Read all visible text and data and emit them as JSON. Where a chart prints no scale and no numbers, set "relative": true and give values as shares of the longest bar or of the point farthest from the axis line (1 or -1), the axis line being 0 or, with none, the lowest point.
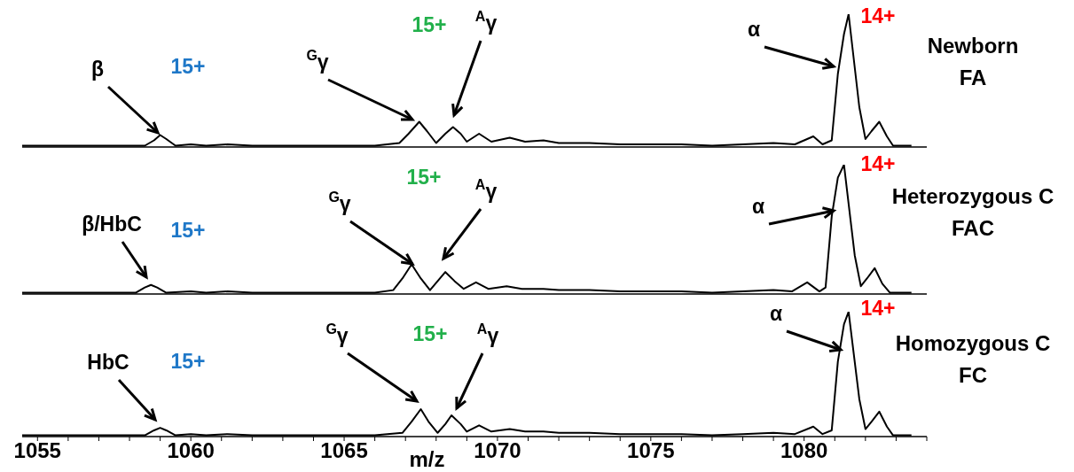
{
  "chart_data": [
    {
      "type": "line",
      "relative": true,
      "title": "Newborn\nFA",
      "xlim": [
        1054.5,
        1084
      ],
      "tick_labels": false,
      "series": [
        {
          "color": "#000000",
          "x": [
            1054.5,
            1056,
            1058.5,
            1058.8,
            1059.0,
            1059.2,
            1059.5,
            1060,
            1060.5,
            1061.2,
            1062,
            1063,
            1064,
            1065,
            1066,
            1066.8,
            1067.1,
            1067.45,
            1067.7,
            1068.0,
            1068.3,
            1068.55,
            1068.8,
            1069.0,
            1069.4,
            1069.8,
            1070.4,
            1070.9,
            1071.5,
            1072,
            1073,
            1074,
            1075,
            1076,
            1077,
            1078,
            1079,
            1079.7,
            1080.3,
            1080.6,
            1080.9,
            1081.1,
            1081.3,
            1081.45,
            1081.6,
            1081.8,
            1082.0,
            1082.2,
            1082.45,
            1082.7,
            1082.9,
            1083.5
          ],
          "values": [
            0.01,
            0.01,
            0.01,
            0.05,
            0.09,
            0.06,
            0.01,
            0.02,
            0.01,
            0.02,
            0.01,
            0.01,
            0.01,
            0.01,
            0.01,
            0.03,
            0.1,
            0.19,
            0.12,
            0.03,
            0.1,
            0.15,
            0.1,
            0.04,
            0.1,
            0.04,
            0.07,
            0.04,
            0.05,
            0.03,
            0.03,
            0.02,
            0.02,
            0.02,
            0.01,
            0.02,
            0.03,
            0.02,
            0.08,
            0.02,
            0.05,
            0.55,
            0.85,
            1,
            0.7,
            0.3,
            0.06,
            0.12,
            0.19,
            0.08,
            0.01,
            0.01
          ]
        }
      ],
      "annotations": [
        "β",
        "15+",
        "$^{G}$γ",
        "15+",
        "$^{A}$γ",
        "α",
        "14+"
      ]
    },
    {
      "type": "line",
      "relative": true,
      "title": "Heterozygous C\nFAC",
      "xlim": [
        1054.5,
        1084
      ],
      "tick_labels": false,
      "series": [
        {
          "color": "#000000",
          "x": [
            1054.5,
            1056,
            1058.2,
            1058.5,
            1058.7,
            1058.9,
            1059.2,
            1060,
            1060.5,
            1061.2,
            1062,
            1063,
            1064,
            1065,
            1066,
            1066.6,
            1066.9,
            1067.2,
            1067.5,
            1067.8,
            1068.05,
            1068.3,
            1068.6,
            1068.9,
            1069.3,
            1069.7,
            1070.3,
            1070.8,
            1071.5,
            1072,
            1073,
            1074,
            1075,
            1076,
            1077,
            1078,
            1079,
            1079.6,
            1080.1,
            1080.5,
            1080.7,
            1080.9,
            1081.1,
            1081.3,
            1081.45,
            1081.65,
            1081.85,
            1082.05,
            1082.3,
            1082.55,
            1082.8,
            1083.5
          ],
          "values": [
            0.01,
            0.01,
            0.01,
            0.05,
            0.07,
            0.05,
            0.01,
            0.02,
            0.01,
            0.02,
            0.01,
            0.01,
            0.01,
            0.01,
            0.01,
            0.03,
            0.12,
            0.23,
            0.12,
            0.03,
            0.1,
            0.17,
            0.1,
            0.04,
            0.09,
            0.04,
            0.06,
            0.04,
            0.04,
            0.03,
            0.03,
            0.02,
            0.02,
            0.02,
            0.01,
            0.02,
            0.03,
            0.02,
            0.09,
            0.02,
            0.05,
            0.6,
            0.9,
            1,
            0.7,
            0.3,
            0.06,
            0.12,
            0.2,
            0.08,
            0.01,
            0.01
          ]
        }
      ],
      "annotations": [
        "β/HbC",
        "15+",
        "$^{G}$γ",
        "15+",
        "$^{A}$γ",
        "α",
        "14+"
      ]
    },
    {
      "type": "line",
      "relative": true,
      "title": "Homozygous C\nFC",
      "xlabel": "m/z",
      "xlim": [
        1054.5,
        1084
      ],
      "tick_labels": "x",
      "xticks": [
        1055,
        {
          "value": 1056,
          "label": null
        },
        {
          "value": 1057,
          "label": null
        },
        {
          "value": 1058,
          "label": null
        },
        {
          "value": 1059,
          "label": null
        },
        1060,
        {
          "value": 1061,
          "label": null
        },
        {
          "value": 1062,
          "label": null
        },
        {
          "value": 1063,
          "label": null
        },
        {
          "value": 1064,
          "label": null
        },
        1065,
        {
          "value": 1066,
          "label": null
        },
        {
          "value": 1067,
          "label": null
        },
        {
          "value": 1068,
          "label": null
        },
        {
          "value": 1069,
          "label": null
        },
        1070,
        {
          "value": 1071,
          "label": null
        },
        {
          "value": 1072,
          "label": null
        },
        {
          "value": 1073,
          "label": null
        },
        {
          "value": 1074,
          "label": null
        },
        1075,
        {
          "value": 1076,
          "label": null
        },
        {
          "value": 1077,
          "label": null
        },
        {
          "value": 1078,
          "label": null
        },
        {
          "value": 1079,
          "label": null
        },
        1080,
        {
          "value": 1081,
          "label": null
        },
        {
          "value": 1082,
          "label": null
        },
        {
          "value": 1083,
          "label": null
        },
        {
          "value": 1084,
          "label": null
        }
      ],
      "series": [
        {
          "color": "#000000",
          "x": [
            1054.5,
            1056,
            1058.5,
            1058.8,
            1059.0,
            1059.2,
            1059.5,
            1060,
            1060.5,
            1061.2,
            1062,
            1063,
            1064,
            1065,
            1066,
            1066.9,
            1067.2,
            1067.5,
            1067.75,
            1068.05,
            1068.3,
            1068.5,
            1068.8,
            1069.0,
            1069.4,
            1069.8,
            1070.4,
            1070.9,
            1071.5,
            1072,
            1073,
            1074,
            1075,
            1076,
            1077,
            1078,
            1079,
            1079.7,
            1080.3,
            1080.6,
            1080.9,
            1081.1,
            1081.3,
            1081.45,
            1081.6,
            1081.8,
            1082.0,
            1082.2,
            1082.45,
            1082.7,
            1082.9,
            1083.5
          ],
          "values": [
            0.01,
            0.01,
            0.01,
            0.05,
            0.07,
            0.05,
            0.01,
            0.02,
            0.01,
            0.02,
            0.01,
            0.01,
            0.01,
            0.01,
            0.01,
            0.03,
            0.12,
            0.22,
            0.12,
            0.03,
            0.1,
            0.17,
            0.1,
            0.04,
            0.09,
            0.04,
            0.06,
            0.04,
            0.04,
            0.03,
            0.03,
            0.02,
            0.02,
            0.02,
            0.01,
            0.02,
            0.03,
            0.02,
            0.08,
            0.02,
            0.05,
            0.6,
            0.9,
            1,
            0.7,
            0.3,
            0.06,
            0.12,
            0.2,
            0.08,
            0.01,
            0.01
          ]
        }
      ],
      "annotations": [
        "HbC",
        "15+",
        "$^{G}$γ",
        "15+",
        "$^{A}$γ",
        "α",
        "14+"
      ]
    }
  ]
}
